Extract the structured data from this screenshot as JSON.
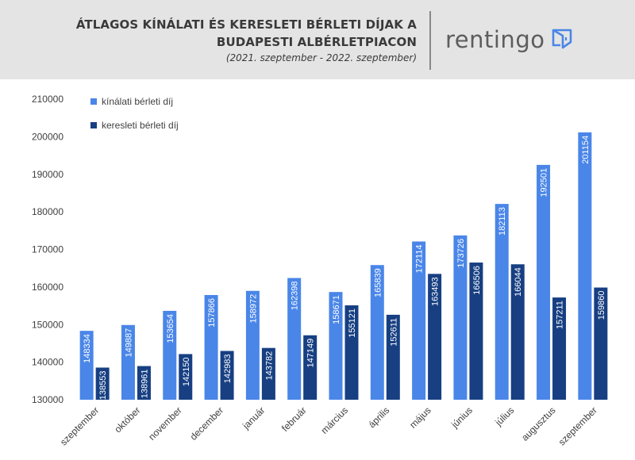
{
  "header": {
    "title_line1": "ÁTLAGOS KÍNÁLATI ÉS KERESLETI BÉRLETI DÍJAK A",
    "title_line2": "BUDAPESTI ALBÉRLETPIACON",
    "subtitle": "(2021. szeptember - 2022. szeptember)",
    "logo_text": "rentingo",
    "logo_icon": "door-icon"
  },
  "chart_data": {
    "type": "bar",
    "categories": [
      "szeptember",
      "október",
      "november",
      "december",
      "január",
      "február",
      "március",
      "április",
      "május",
      "június",
      "július",
      "augusztus",
      "szeptember"
    ],
    "series": [
      {
        "name": "kínálati bérleti díj",
        "color": "#4a86e8",
        "values": [
          148334,
          149887,
          153654,
          157866,
          158972,
          162398,
          158671,
          165839,
          172114,
          173726,
          182113,
          192501,
          201154
        ]
      },
      {
        "name": "keresleti bérleti díj",
        "color": "#173f82",
        "values": [
          138553,
          138961,
          142150,
          142983,
          143782,
          147149,
          155121,
          152611,
          163493,
          166506,
          166044,
          157211,
          159860
        ]
      }
    ],
    "ylim": [
      130000,
      210000
    ],
    "yticks": [
      130000,
      140000,
      150000,
      160000,
      170000,
      180000,
      190000,
      200000,
      210000
    ],
    "data_labels": true,
    "grid": false,
    "legend_position": "top-left",
    "xlabel": "",
    "ylabel": ""
  }
}
